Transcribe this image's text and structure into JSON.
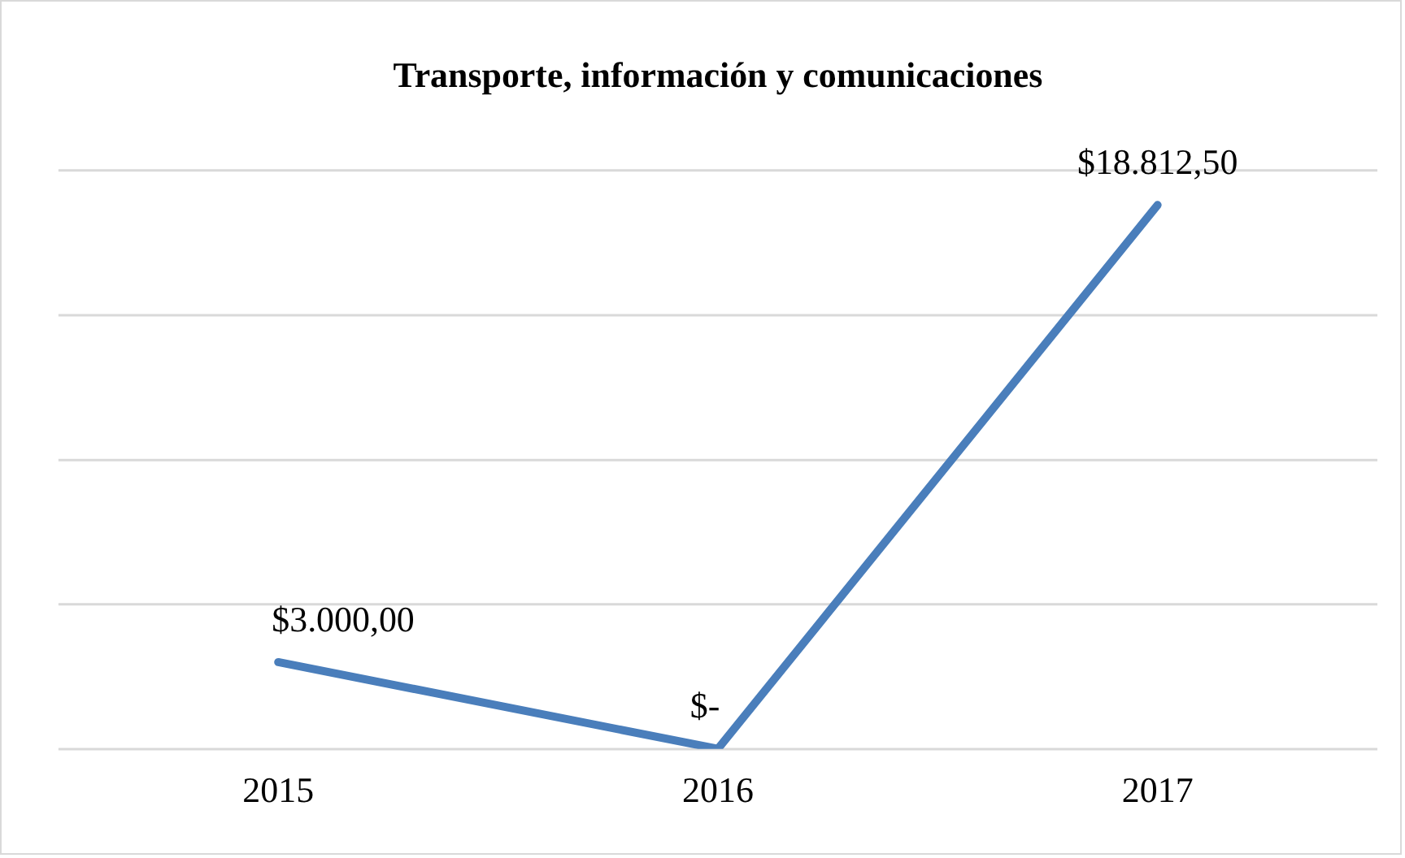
{
  "chart_data": {
    "type": "line",
    "title": "Transporte, información y comunicaciones",
    "categories": [
      "2015",
      "2016",
      "2017"
    ],
    "series": [
      {
        "color": "#4a7ebb",
        "values": [
          3000,
          0,
          18812.5
        ],
        "value_labels": [
          "$3.000,00",
          "$-",
          "$18.812,50"
        ]
      }
    ],
    "ylim": [
      0,
      20000
    ],
    "yticks": [
      {
        "value": 0,
        "label": null
      },
      {
        "value": 5000,
        "label": null
      },
      {
        "value": 10000,
        "label": null
      },
      {
        "value": 15000,
        "label": null
      },
      {
        "value": 20000,
        "label": null
      }
    ],
    "tick_labels": "x",
    "grid": "y",
    "legend": false,
    "marker": "none",
    "line_style": "solid"
  }
}
